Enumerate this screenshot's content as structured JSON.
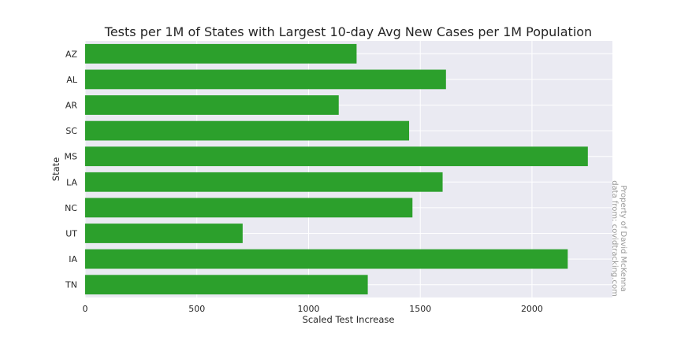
{
  "chart_data": {
    "type": "bar",
    "orientation": "horizontal",
    "title": "Tests per 1M of States with Largest 10-day Avg New Cases per 1M Population",
    "xlabel": "Scaled Test Increase",
    "ylabel": "State",
    "categories": [
      "AZ",
      "AL",
      "AR",
      "SC",
      "MS",
      "LA",
      "NC",
      "UT",
      "IA",
      "TN"
    ],
    "values": [
      1215,
      1615,
      1135,
      1450,
      2250,
      1600,
      1465,
      705,
      2160,
      1265
    ],
    "xlim": [
      0,
      2360
    ],
    "xticks": [
      "0",
      "500",
      "1000",
      "1500",
      "2000"
    ],
    "grid": true,
    "bar_color": "#2ca02c",
    "background_color": "#eaeaf2",
    "watermark": [
      "Property of David McKenna",
      "data from: covidtracking.com"
    ]
  }
}
